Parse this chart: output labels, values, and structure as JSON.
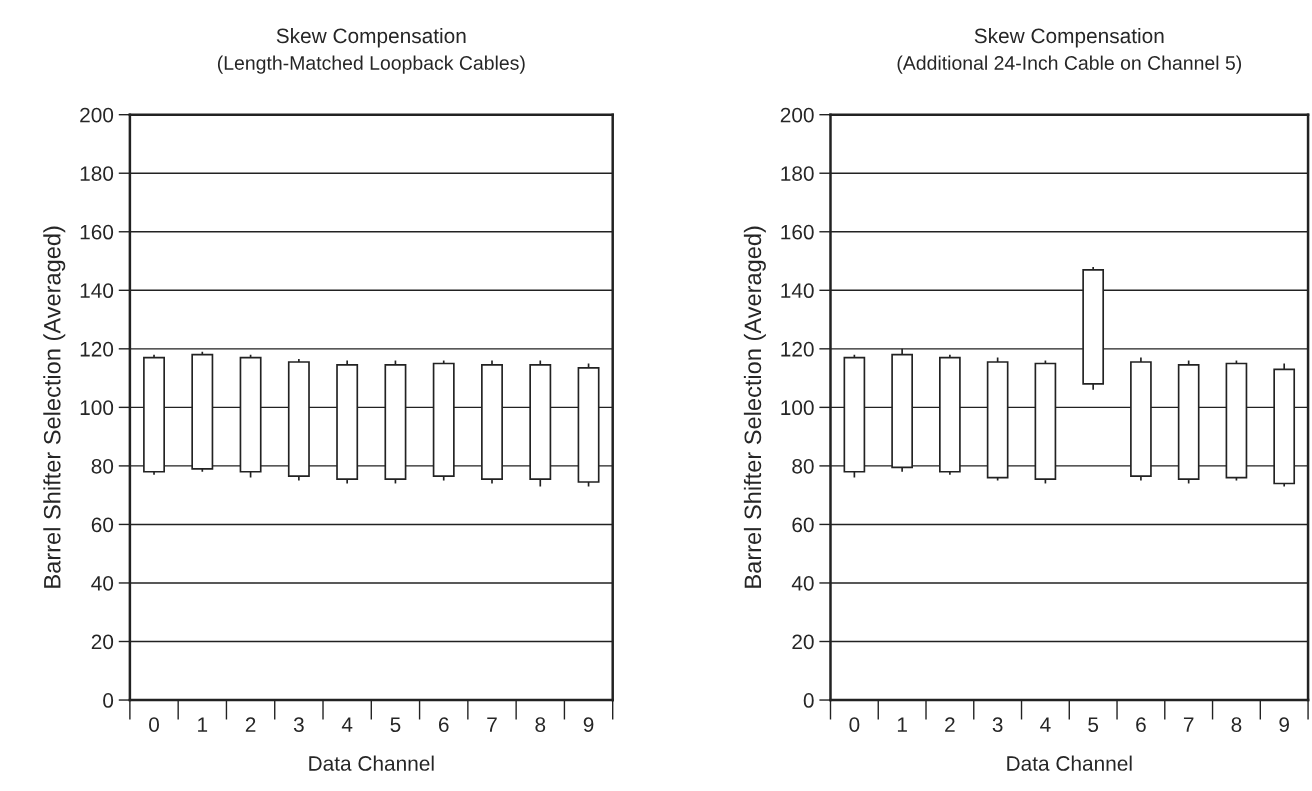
{
  "chart_data": [
    {
      "type": "candlestick",
      "title": "Skew Compensation",
      "subtitle": "(Length-Matched Loopback Cables)",
      "xlabel": "Data Channel",
      "ylabel": "Barrel Shifter Selection (Averaged)",
      "categories": [
        "0",
        "1",
        "2",
        "3",
        "4",
        "5",
        "6",
        "7",
        "8",
        "9"
      ],
      "ohlc": [
        [
          78,
          118,
          77,
          117
        ],
        [
          79,
          119,
          78,
          118
        ],
        [
          78,
          118,
          76,
          117
        ],
        [
          76.5,
          116.5,
          75,
          115.5
        ],
        [
          75.5,
          116,
          74,
          114.5
        ],
        [
          75.5,
          116,
          74,
          114.5
        ],
        [
          76.5,
          116,
          75,
          115
        ],
        [
          75.5,
          116,
          74,
          114.5
        ],
        [
          75.5,
          116,
          73,
          114.5
        ],
        [
          74.5,
          115,
          73,
          113.5
        ]
      ],
      "ylim": [
        0,
        200
      ],
      "yticks": [
        0,
        20,
        40,
        60,
        80,
        100,
        120,
        140,
        160,
        180,
        200
      ],
      "grid": "y"
    },
    {
      "type": "candlestick",
      "title": "Skew Compensation",
      "subtitle": "(Additional 24-Inch Cable on Channel 5)",
      "xlabel": "Data Channel",
      "ylabel": "Barrel Shifter Selection (Averaged)",
      "categories": [
        "0",
        "1",
        "2",
        "3",
        "4",
        "5",
        "6",
        "7",
        "8",
        "9"
      ],
      "ohlc": [
        [
          78,
          118,
          76,
          117
        ],
        [
          79.5,
          120,
          78,
          118
        ],
        [
          78,
          118,
          77,
          117
        ],
        [
          76,
          117,
          75,
          115.5
        ],
        [
          75.5,
          116,
          74,
          115
        ],
        [
          108,
          148,
          106,
          147
        ],
        [
          76.5,
          117,
          75,
          115.5
        ],
        [
          75.5,
          116,
          74,
          114.5
        ],
        [
          76,
          116,
          75,
          115
        ],
        [
          74,
          115,
          73,
          113
        ]
      ],
      "ylim": [
        0,
        200
      ],
      "yticks": [
        0,
        20,
        40,
        60,
        80,
        100,
        120,
        140,
        160,
        180,
        200
      ],
      "grid": "y"
    }
  ]
}
